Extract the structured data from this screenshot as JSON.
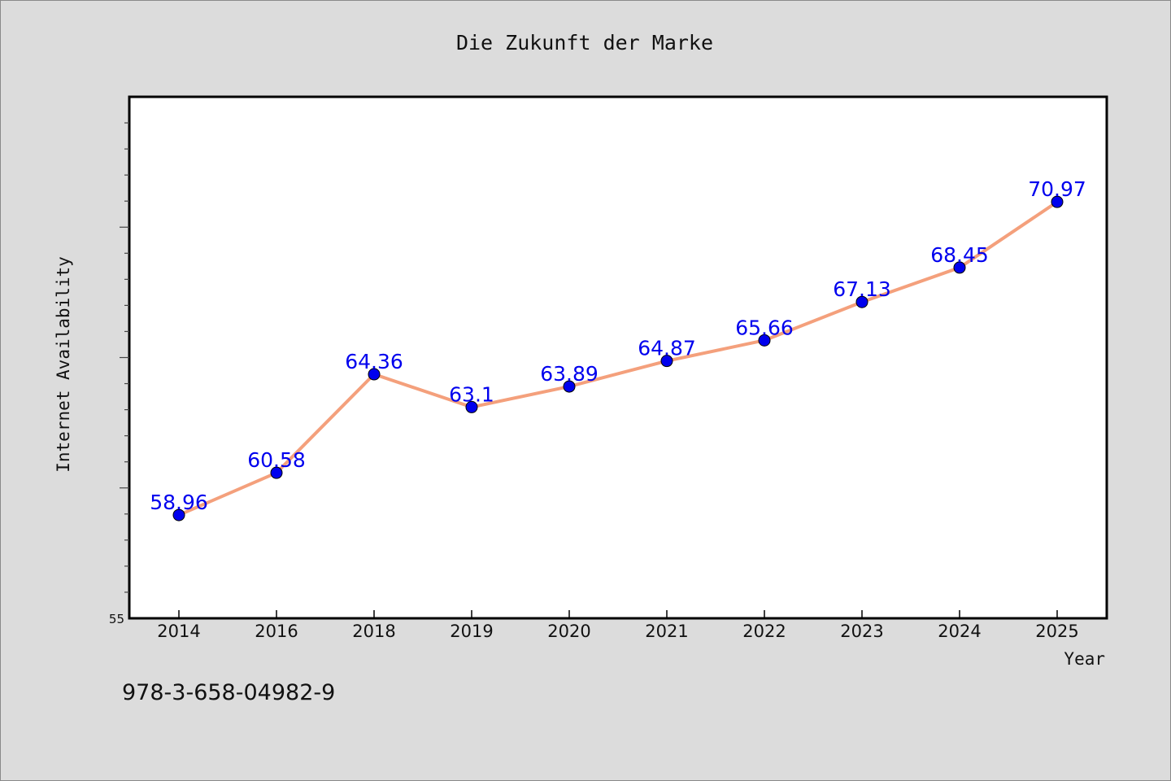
{
  "chart_data": {
    "type": "line",
    "title": "Die Zukunft der Marke",
    "xlabel": "Year",
    "ylabel": "Internet Availability",
    "categories": [
      "2014",
      "2016",
      "2018",
      "2019",
      "2020",
      "2021",
      "2022",
      "2023",
      "2024",
      "2025"
    ],
    "series": [
      {
        "values": [
          58.96,
          60.58,
          64.36,
          63.1,
          63.89,
          64.87,
          65.66,
          67.13,
          68.45,
          70.97
        ],
        "labels": [
          "58.96",
          "60.58",
          "64.36",
          "63.1",
          "63.89",
          "64.87",
          "65.66",
          "67.13",
          "68.45",
          "70.97"
        ],
        "line_color": "#f4a07c",
        "marker_color": "#0000ee",
        "label_color": "#0000ee"
      }
    ],
    "ylim": [
      55,
      75
    ],
    "yticks": [
      "55"
    ],
    "grid": false,
    "legend": "none"
  },
  "footer": {
    "isbn": "978-3-658-04982-9"
  }
}
